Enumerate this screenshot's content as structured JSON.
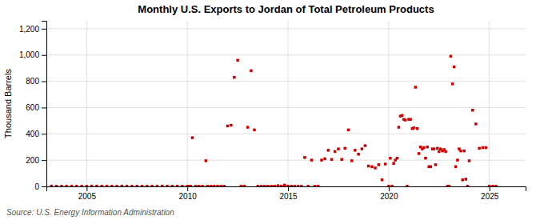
{
  "chart_data": {
    "type": "scatter",
    "title": "Monthly U.S. Exports to Jordan of Total Petroleum Products",
    "ylabel": "Thousand Barrels",
    "annotations": [
      "Source: U.S. Energy Information Administration"
    ],
    "color": "#cc0000",
    "marker": "square",
    "grid": true,
    "xlim": [
      2003.0,
      2026.8
    ],
    "ylim": [
      0,
      1260
    ],
    "xticks": [
      2005,
      2010,
      2015,
      2020,
      2025
    ],
    "yticks": [
      0,
      200,
      400,
      600,
      800,
      {
        "value": 1000,
        "label": "1,000"
      },
      {
        "value": 1200,
        "label": "1,200"
      }
    ],
    "x": [
      2003.25,
      2003.5,
      2003.75,
      2004.0,
      2004.25,
      2004.5,
      2004.75,
      2005.0,
      2005.25,
      2005.5,
      2005.75,
      2006.0,
      2006.25,
      2006.5,
      2006.75,
      2007.0,
      2007.25,
      2007.5,
      2007.75,
      2008.0,
      2008.25,
      2008.5,
      2008.75,
      2009.0,
      2009.25,
      2009.5,
      2009.75,
      2010.0,
      2010.08,
      2010.17,
      2010.25,
      2010.42,
      2010.58,
      2010.75,
      2010.92,
      2011.0,
      2011.17,
      2011.33,
      2011.5,
      2011.67,
      2011.83,
      2012.0,
      2012.17,
      2012.33,
      2012.5,
      2012.67,
      2012.83,
      2013.0,
      2013.17,
      2013.33,
      2013.5,
      2013.67,
      2013.83,
      2014.0,
      2014.17,
      2014.33,
      2014.5,
      2014.67,
      2014.83,
      2015.0,
      2015.17,
      2015.33,
      2015.5,
      2015.67,
      2015.83,
      2016.0,
      2016.17,
      2016.33,
      2016.5,
      2016.67,
      2016.83,
      2017.0,
      2017.17,
      2017.33,
      2017.5,
      2017.67,
      2017.83,
      2018.0,
      2018.17,
      2018.33,
      2018.5,
      2018.67,
      2018.83,
      2019.0,
      2019.17,
      2019.33,
      2019.5,
      2019.67,
      2019.83,
      2020.0,
      2020.08,
      2020.17,
      2020.25,
      2020.33,
      2020.42,
      2020.5,
      2020.58,
      2020.67,
      2020.75,
      2020.83,
      2020.92,
      2021.0,
      2021.08,
      2021.17,
      2021.25,
      2021.33,
      2021.42,
      2021.5,
      2021.58,
      2021.67,
      2021.75,
      2021.83,
      2021.92,
      2022.0,
      2022.08,
      2022.17,
      2022.25,
      2022.33,
      2022.42,
      2022.5,
      2022.58,
      2022.67,
      2022.75,
      2022.83,
      2022.92,
      2023.0,
      2023.08,
      2023.17,
      2023.25,
      2023.33,
      2023.42,
      2023.5,
      2023.58,
      2023.67,
      2023.75,
      2023.83,
      2023.92,
      2024.0,
      2024.17,
      2024.33,
      2024.5,
      2024.67,
      2024.83,
      2025.0,
      2025.17,
      2025.33
    ],
    "values": [
      2,
      1,
      1,
      1,
      1,
      1,
      1,
      1,
      2,
      2,
      1,
      1,
      1,
      1,
      2,
      1,
      1,
      1,
      1,
      1,
      1,
      1,
      2,
      1,
      1,
      1,
      1,
      1,
      1,
      1,
      370,
      1,
      1,
      1,
      195,
      1,
      1,
      1,
      1,
      1,
      1,
      460,
      465,
      830,
      960,
      1,
      1,
      450,
      880,
      430,
      1,
      1,
      1,
      1,
      1,
      1,
      5,
      1,
      10,
      1,
      1,
      1,
      1,
      1,
      220,
      1,
      200,
      1,
      1,
      200,
      210,
      275,
      205,
      265,
      285,
      205,
      290,
      430,
      195,
      275,
      245,
      285,
      310,
      155,
      150,
      140,
      165,
      50,
      170,
      1,
      215,
      1,
      175,
      200,
      215,
      450,
      535,
      540,
      510,
      505,
      1,
      510,
      510,
      440,
      445,
      755,
      440,
      250,
      300,
      285,
      295,
      215,
      300,
      150,
      150,
      285,
      285,
      165,
      290,
      265,
      285,
      270,
      280,
      265,
      1,
      1,
      990,
      780,
      910,
      150,
      200,
      285,
      270,
      50,
      270,
      55,
      1,
      195,
      580,
      475,
      290,
      295,
      295,
      1,
      1,
      1
    ]
  }
}
